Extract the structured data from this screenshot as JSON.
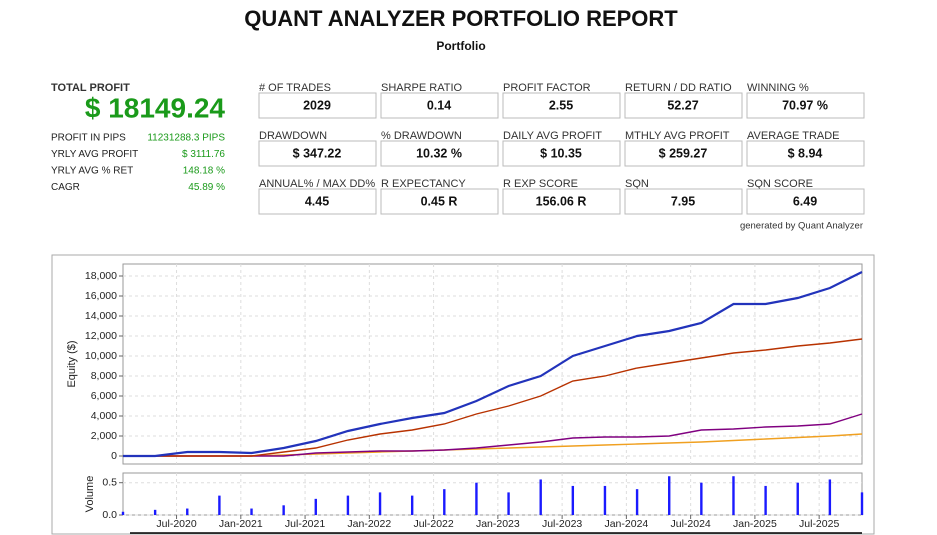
{
  "header": {
    "title": "QUANT ANALYZER PORTFOLIO REPORT",
    "subtitle": "Portfolio"
  },
  "summary": {
    "label": "TOTAL PROFIT",
    "value": "$ 18149.24",
    "rows": [
      {
        "label": "PROFIT IN PIPS",
        "value": "11231288.3 PIPS"
      },
      {
        "label": "YRLY AVG PROFIT",
        "value": "$ 3111.76"
      },
      {
        "label": "YRLY AVG % RET",
        "value": "148.18 %"
      },
      {
        "label": "CAGR",
        "value": "45.89 %"
      }
    ]
  },
  "stats": [
    {
      "label": "# OF TRADES",
      "value": "2029"
    },
    {
      "label": "SHARPE RATIO",
      "value": "0.14"
    },
    {
      "label": "PROFIT FACTOR",
      "value": "2.55"
    },
    {
      "label": "RETURN / DD RATIO",
      "value": "52.27"
    },
    {
      "label": "WINNING %",
      "value": "70.97 %"
    },
    {
      "label": "DRAWDOWN",
      "value": "$ 347.22"
    },
    {
      "label": "% DRAWDOWN",
      "value": "10.32 %"
    },
    {
      "label": "DAILY AVG PROFIT",
      "value": "$ 10.35"
    },
    {
      "label": "MTHLY AVG PROFIT",
      "value": "$ 259.27"
    },
    {
      "label": "AVERAGE TRADE",
      "value": "$ 8.94"
    },
    {
      "label": "ANNUAL% / MAX DD%",
      "value": "4.45"
    },
    {
      "label": "R EXPECTANCY",
      "value": "0.45 R"
    },
    {
      "label": "R EXP SCORE",
      "value": "156.06 R"
    },
    {
      "label": "SQN",
      "value": "7.95"
    },
    {
      "label": "SQN SCORE",
      "value": "6.49"
    }
  ],
  "generated_by": "generated by Quant Analyzer",
  "chart_data": [
    {
      "type": "line",
      "ylabel": "Equity ($)",
      "x": [
        "Feb-2020",
        "May-2020",
        "Aug-2020",
        "Nov-2020",
        "Feb-2021",
        "May-2021",
        "Aug-2021",
        "Nov-2021",
        "Feb-2022",
        "May-2022",
        "Aug-2022",
        "Nov-2022",
        "Feb-2023",
        "May-2023",
        "Aug-2023",
        "Nov-2023",
        "Feb-2024",
        "May-2024",
        "Aug-2024",
        "Nov-2024",
        "Feb-2025",
        "May-2025",
        "Aug-2025",
        "Nov-2025"
      ],
      "xlim": [
        "Feb-2020",
        "Nov-2025"
      ],
      "ylim": [
        -800,
        19200
      ],
      "yticks": [
        0,
        {
          "value": 2000,
          "label": "2,000"
        },
        {
          "value": 4000,
          "label": "4,000"
        },
        {
          "value": 6000,
          "label": "6,000"
        },
        {
          "value": 8000,
          "label": "8,000"
        },
        {
          "value": 10000,
          "label": "10,000"
        },
        {
          "value": 12000,
          "label": "12,000"
        },
        {
          "value": 14000,
          "label": "14,000"
        },
        {
          "value": 16000,
          "label": "16,000"
        },
        {
          "value": 18000,
          "label": "18,000"
        }
      ],
      "grid": true,
      "series": [
        {
          "color": "#f0a020",
          "values": [
            0,
            0,
            0,
            0,
            0,
            100,
            200,
            300,
            400,
            500,
            600,
            700,
            800,
            900,
            1000,
            1100,
            1200,
            1300,
            1400,
            1550,
            1700,
            1850,
            2000,
            2200
          ]
        },
        {
          "color": "#800080",
          "values": [
            0,
            0,
            0,
            0,
            0,
            0,
            300,
            400,
            500,
            500,
            600,
            800,
            1100,
            1400,
            1800,
            1900,
            1900,
            2000,
            2600,
            2700,
            2900,
            3000,
            3200,
            4200
          ]
        },
        {
          "color": "#b83200",
          "values": [
            0,
            0,
            0,
            0,
            0,
            400,
            800,
            1600,
            2200,
            2600,
            3200,
            4200,
            5000,
            6000,
            7500,
            8000,
            8800,
            9300,
            9800,
            10300,
            10600,
            11000,
            11300,
            11700
          ]
        },
        {
          "color": "#2233bb",
          "values": [
            0,
            0,
            400,
            400,
            300,
            800,
            1500,
            2500,
            3200,
            3800,
            4300,
            5500,
            7000,
            8000,
            10000,
            11000,
            12000,
            12500,
            13300,
            15200,
            15200,
            15800,
            16800,
            18400
          ]
        }
      ]
    },
    {
      "type": "bar",
      "ylabel": "Volume",
      "color": "#1a1aff",
      "x": [
        "Feb-2020",
        "May-2020",
        "Aug-2020",
        "Nov-2020",
        "Feb-2021",
        "May-2021",
        "Aug-2021",
        "Nov-2021",
        "Feb-2022",
        "May-2022",
        "Aug-2022",
        "Nov-2022",
        "Feb-2023",
        "May-2023",
        "Aug-2023",
        "Nov-2023",
        "Feb-2024",
        "May-2024",
        "Aug-2024",
        "Nov-2024",
        "Feb-2025",
        "May-2025",
        "Aug-2025",
        "Nov-2025"
      ],
      "values": [
        0.05,
        0.08,
        0.1,
        0.3,
        0.1,
        0.15,
        0.25,
        0.3,
        0.35,
        0.3,
        0.4,
        0.5,
        0.35,
        0.55,
        0.45,
        0.45,
        0.4,
        0.6,
        0.5,
        0.6,
        0.45,
        0.5,
        0.55,
        0.35
      ],
      "xlim": [
        "Feb-2020",
        "Nov-2025"
      ],
      "xticks": [
        "Jul-2020",
        "Jan-2021",
        "Jul-2021",
        "Jan-2022",
        "Jul-2022",
        "Jan-2023",
        "Jul-2023",
        "Jan-2024",
        "Jul-2024",
        "Jan-2025",
        "Jul-2025"
      ],
      "ylim": [
        0,
        0.65
      ],
      "yticks": [
        {
          "value": 0,
          "label": "0.0"
        },
        0.5
      ],
      "grid": true
    }
  ]
}
